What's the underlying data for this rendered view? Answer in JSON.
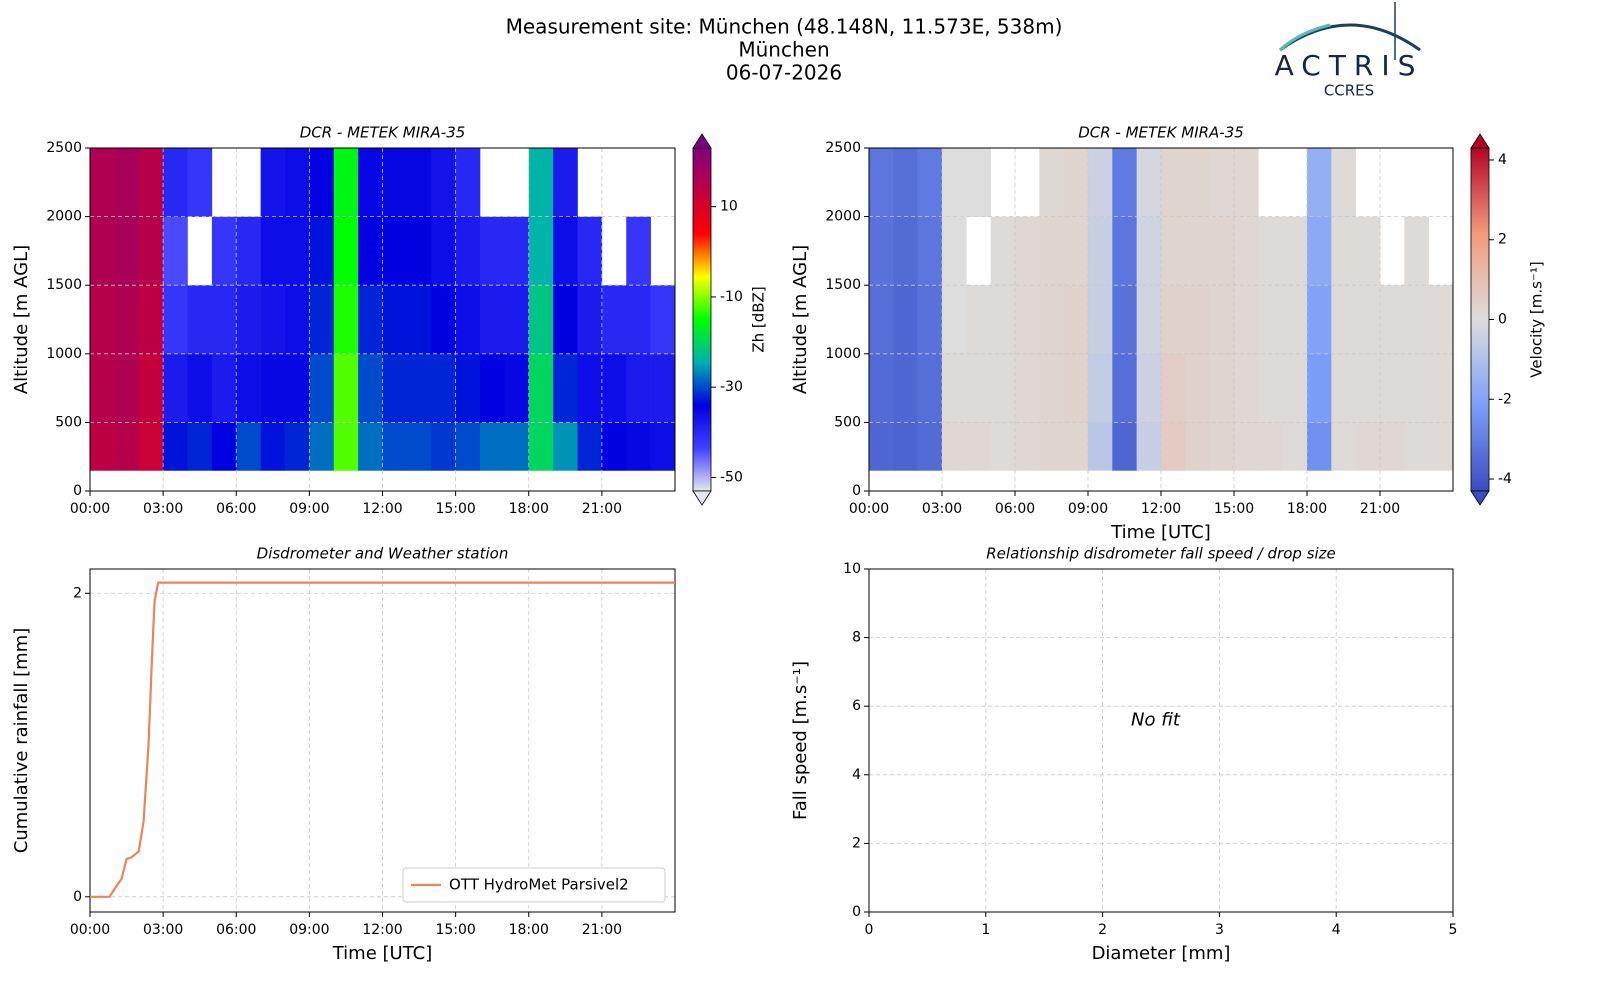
{
  "header": {
    "title": "Measurement site: München (48.148N, 11.573E, 538m)",
    "site": "München",
    "date": "06-07-2026",
    "logo": "ACTRIS",
    "logo_sub": "CCRES"
  },
  "chart_data": [
    {
      "type": "heatmap",
      "title": "DCR - METEK MIRA-35",
      "ylabel": "Altitude [m AGL]",
      "colorbar_label": "Zh [dBZ]",
      "xlim": [
        0,
        24
      ],
      "ylim": [
        0,
        2500
      ],
      "xticks": [
        {
          "value": 0,
          "label": "00:00"
        },
        {
          "value": 3,
          "label": "03:00"
        },
        {
          "value": 6,
          "label": "06:00"
        },
        {
          "value": 9,
          "label": "09:00"
        },
        {
          "value": 12,
          "label": "12:00"
        },
        {
          "value": 15,
          "label": "15:00"
        },
        {
          "value": 18,
          "label": "18:00"
        },
        {
          "value": 21,
          "label": "21:00"
        }
      ],
      "yticks": [
        0,
        500,
        1000,
        1500,
        2000,
        2500
      ],
      "grid": true,
      "clim": [
        -53,
        23
      ],
      "cticks": [
        10,
        -10,
        -30,
        -50
      ],
      "colors": [
        "#e6e6f0",
        "#4040ff",
        "#0000e0",
        "#00b0b0",
        "#00ff00",
        "#ffff00",
        "#ff0000",
        "#c00040",
        "#800080"
      ],
      "x_bins": [
        0,
        1,
        2,
        3,
        4,
        5,
        6,
        7,
        8,
        9,
        10,
        11,
        12,
        13,
        14,
        15,
        16,
        17,
        18,
        19,
        20,
        21,
        22,
        23,
        24
      ],
      "y_bins": [
        150,
        500,
        1000,
        1500,
        2000,
        2500
      ],
      "z": [
        [
          14,
          15,
          12,
          -33,
          -32,
          -34,
          -30,
          -33,
          -32,
          -28,
          -12,
          -28,
          -30,
          -30,
          -31,
          -30,
          -28,
          -28,
          -20,
          -26,
          -32,
          -34,
          -35,
          -36
        ],
        [
          15,
          16,
          13,
          -38,
          -36,
          -38,
          -36,
          -35,
          -35,
          -30,
          -12,
          -30,
          -32,
          -32,
          -32,
          -33,
          -34,
          -35,
          -20,
          -32,
          -36,
          -36,
          -38,
          -38
        ],
        [
          15,
          16,
          14,
          -42,
          -40,
          -40,
          -38,
          -37,
          -36,
          -32,
          -14,
          -32,
          -33,
          -33,
          -34,
          -36,
          -38,
          -38,
          -22,
          -34,
          -38,
          -40,
          -40,
          -42
        ],
        [
          16,
          17,
          15,
          -44,
          null,
          -42,
          -40,
          -36,
          -36,
          -33,
          -15,
          -34,
          -34,
          -34,
          -36,
          -38,
          -40,
          -40,
          -24,
          -36,
          -40,
          null,
          -42,
          null
        ],
        [
          16,
          17,
          15,
          -40,
          -42,
          null,
          null,
          -37,
          -36,
          -34,
          -16,
          -35,
          -35,
          -35,
          -37,
          -40,
          null,
          null,
          -24,
          -38,
          null,
          null,
          null,
          null
        ]
      ]
    },
    {
      "type": "heatmap",
      "title": "DCR - METEK MIRA-35",
      "xlabel": "Time [UTC]",
      "ylabel": "Altitude [m AGL]",
      "colorbar_label": "Velocity [m.s⁻¹]",
      "xlim": [
        0,
        24
      ],
      "ylim": [
        0,
        2500
      ],
      "xticks": [
        {
          "value": 0,
          "label": "00:00"
        },
        {
          "value": 3,
          "label": "03:00"
        },
        {
          "value": 6,
          "label": "06:00"
        },
        {
          "value": 9,
          "label": "09:00"
        },
        {
          "value": 12,
          "label": "12:00"
        },
        {
          "value": 15,
          "label": "15:00"
        },
        {
          "value": 18,
          "label": "18:00"
        },
        {
          "value": 21,
          "label": "21:00"
        }
      ],
      "yticks": [
        0,
        500,
        1000,
        1500,
        2000,
        2500
      ],
      "grid": true,
      "clim": [
        -4.3,
        4.3
      ],
      "cticks": [
        4,
        2,
        0,
        -2,
        -4
      ],
      "colors": [
        "#3b4cc0",
        "#7b9ff9",
        "#dddddd",
        "#f49a7b",
        "#b40426"
      ],
      "x_bins": [
        0,
        1,
        2,
        3,
        4,
        5,
        6,
        7,
        8,
        9,
        10,
        11,
        12,
        13,
        14,
        15,
        16,
        17,
        18,
        19,
        20,
        21,
        22,
        23,
        24
      ],
      "y_bins": [
        150,
        500,
        1000,
        1500,
        2000,
        2500
      ],
      "z": [
        [
          -3.6,
          -3.7,
          -3.5,
          0.2,
          0.2,
          0.1,
          0.2,
          0.3,
          0.3,
          -0.8,
          -3.6,
          -0.5,
          0.6,
          0.4,
          0.3,
          0.2,
          0.2,
          0.1,
          -2.5,
          0.1,
          0.2,
          0.2,
          0.1,
          0.1
        ],
        [
          -3.5,
          -3.6,
          -3.4,
          0.1,
          0.1,
          0.1,
          0.2,
          0.3,
          0.4,
          -0.6,
          -3.4,
          -0.4,
          0.5,
          0.4,
          0.3,
          0.2,
          0.1,
          0.1,
          -2.2,
          0.1,
          0.1,
          0.1,
          0.1,
          0.1
        ],
        [
          -3.4,
          -3.6,
          -3.3,
          0.0,
          0.1,
          0.1,
          0.2,
          0.3,
          0.4,
          -0.5,
          -3.3,
          -0.3,
          0.4,
          0.4,
          0.3,
          0.2,
          0.1,
          0.1,
          -2.0,
          0.1,
          0.1,
          0.1,
          0.1,
          0.1
        ],
        [
          -3.3,
          -3.5,
          -3.2,
          0.0,
          null,
          0.1,
          0.2,
          0.3,
          0.3,
          -0.5,
          -3.2,
          -0.3,
          0.3,
          0.3,
          0.3,
          0.2,
          0.1,
          0.1,
          -1.8,
          0.1,
          0.1,
          null,
          0.1,
          null
        ],
        [
          -3.2,
          -3.4,
          -3.1,
          0.0,
          0.0,
          null,
          null,
          0.2,
          0.3,
          -0.4,
          -3.1,
          -0.2,
          0.3,
          0.3,
          0.2,
          0.2,
          null,
          null,
          -1.6,
          0.1,
          null,
          null,
          null,
          null
        ]
      ]
    },
    {
      "type": "line",
      "title": "Disdrometer and Weather station",
      "xlabel": "Time [UTC]",
      "ylabel": "Cumulative rainfall [mm]",
      "xlim": [
        0,
        24
      ],
      "ylim": [
        -0.1,
        2.16
      ],
      "xticks": [
        {
          "value": 0,
          "label": "00:00"
        },
        {
          "value": 3,
          "label": "03:00"
        },
        {
          "value": 6,
          "label": "06:00"
        },
        {
          "value": 9,
          "label": "09:00"
        },
        {
          "value": 12,
          "label": "12:00"
        },
        {
          "value": 15,
          "label": "15:00"
        },
        {
          "value": 18,
          "label": "18:00"
        },
        {
          "value": 21,
          "label": "21:00"
        }
      ],
      "yticks": [
        0,
        2
      ],
      "grid": true,
      "legend": "lower right",
      "x": [
        0,
        0.8,
        1.0,
        1.3,
        1.5,
        1.7,
        2.0,
        2.2,
        2.4,
        2.55,
        2.65,
        2.8,
        24
      ],
      "series": [
        {
          "name": "OTT HydroMet Parsivel2",
          "color": "#e8855c",
          "values": [
            0,
            0,
            0.05,
            0.12,
            0.25,
            0.26,
            0.3,
            0.5,
            1.0,
            1.6,
            1.95,
            2.07,
            2.07
          ]
        }
      ]
    },
    {
      "type": "scatter",
      "title": "Relationship disdrometer fall speed / drop size",
      "xlabel": "Diameter [mm]",
      "ylabel": "Fall speed [m.s⁻¹]",
      "xlim": [
        0,
        5
      ],
      "ylim": [
        0,
        10
      ],
      "xticks": [
        0,
        1,
        2,
        3,
        4,
        5
      ],
      "yticks": [
        0,
        2,
        4,
        6,
        8,
        10
      ],
      "grid": true,
      "annotation": "No fit"
    }
  ]
}
